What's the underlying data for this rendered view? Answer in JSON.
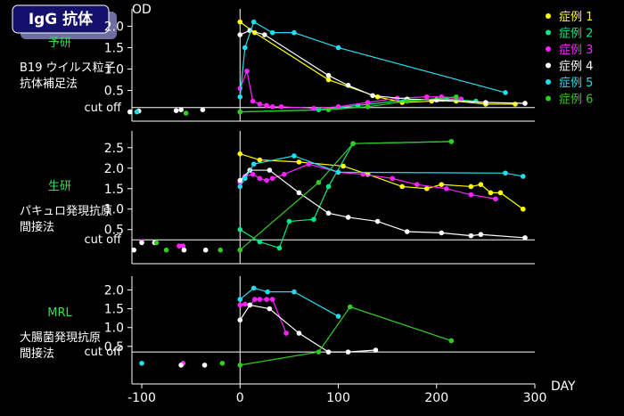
{
  "chart_data": {
    "type": "line",
    "title": "IgG 抗体",
    "y_unit": "OD",
    "x_unit": "DAY",
    "x_ticks": [
      -100,
      0,
      100,
      200,
      300
    ],
    "x_range": [
      -110,
      300
    ],
    "legend": {
      "placement": "top-right",
      "entries": [
        {
          "name": "症例 1",
          "color": "#ffff00"
        },
        {
          "name": "症例 2",
          "color": "#00e887"
        },
        {
          "name": "症例 3",
          "color": "#ff22ff"
        },
        {
          "name": "症例 4",
          "color": "#ffffff"
        },
        {
          "name": "症例 5",
          "color": "#22ddee"
        },
        {
          "name": "症例 6",
          "color": "#33cc22"
        }
      ]
    },
    "panels": [
      {
        "lab": "予研",
        "method": [
          "B19 ウイルス粒子",
          "抗体補足法"
        ],
        "lab_color": "#33dd55",
        "yticks": [
          0.5,
          1.0,
          1.5,
          2.0
        ],
        "ylim": [
          -0.05,
          2.3
        ],
        "cutoff": 0.1,
        "cutoff_label": "cut off",
        "series": [
          {
            "color": "#ffff00",
            "points": [
              [
                0,
                2.1
              ],
              [
                15,
                1.85
              ],
              [
                90,
                0.75
              ],
              [
                140,
                0.35
              ],
              [
                165,
                0.22
              ],
              [
                195,
                0.25
              ],
              [
                220,
                0.25
              ],
              [
                250,
                0.18
              ],
              [
                280,
                0.18
              ]
            ]
          },
          {
            "color": "#00e887",
            "points": [
              [
                0,
                0.0
              ],
              [
                80,
                0.05
              ],
              [
                120,
                0.15
              ],
              [
                170,
                0.28
              ],
              [
                210,
                0.3
              ],
              [
                240,
                0.25
              ]
            ]
          },
          {
            "color": "#ff22ff",
            "points": [
              [
                0,
                0.55
              ],
              [
                7,
                0.95
              ],
              [
                13,
                0.25
              ],
              [
                20,
                0.18
              ],
              [
                27,
                0.15
              ],
              [
                33,
                0.12
              ],
              [
                42,
                0.12
              ],
              [
                75,
                0.08
              ],
              [
                100,
                0.12
              ],
              [
                130,
                0.22
              ],
              [
                160,
                0.32
              ],
              [
                190,
                0.35
              ],
              [
                205,
                0.35
              ],
              [
                225,
                0.3
              ]
            ]
          },
          {
            "color": "#ffffff",
            "points": [
              [
                -112,
                0.0
              ],
              [
                -103,
                0.02
              ],
              [
                -65,
                0.03
              ],
              [
                -60,
                0.05
              ],
              [
                -38,
                0.05
              ],
              [
                0,
                1.8
              ],
              [
                10,
                1.9
              ],
              [
                25,
                1.8
              ],
              [
                90,
                0.85
              ],
              [
                110,
                0.62
              ],
              [
                135,
                0.38
              ],
              [
                170,
                0.3
              ],
              [
                200,
                0.28
              ],
              [
                250,
                0.22
              ],
              [
                290,
                0.2
              ]
            ]
          },
          {
            "color": "#22ddee",
            "points": [
              [
                -105,
                0.0
              ],
              [
                0,
                0.35
              ],
              [
                5,
                1.5
              ],
              [
                14,
                2.1
              ],
              [
                33,
                1.85
              ],
              [
                55,
                1.85
              ],
              [
                100,
                1.5
              ],
              [
                270,
                0.45
              ]
            ]
          },
          {
            "color": "#33cc22",
            "points": [
              [
                -55,
                -0.03
              ],
              [
                0,
                0.0
              ],
              [
                90,
                0.05
              ],
              [
                130,
                0.12
              ],
              [
                170,
                0.25
              ],
              [
                220,
                0.35
              ]
            ]
          }
        ]
      },
      {
        "lab": "生研",
        "method": [
          "パキュロ発現抗原",
          "間接法"
        ],
        "lab_color": "#33dd55",
        "yticks": [
          0.5,
          1.0,
          1.5,
          2.0,
          2.5
        ],
        "ylim": [
          -0.05,
          2.8
        ],
        "cutoff": 0.25,
        "cutoff_label": "cut off",
        "series": [
          {
            "color": "#ffff00",
            "points": [
              [
                0,
                2.35
              ],
              [
                20,
                2.2
              ],
              [
                60,
                2.15
              ],
              [
                105,
                2.05
              ],
              [
                130,
                1.85
              ],
              [
                165,
                1.55
              ],
              [
                190,
                1.5
              ],
              [
                205,
                1.6
              ],
              [
                235,
                1.55
              ],
              [
                245,
                1.6
              ],
              [
                255,
                1.4
              ],
              [
                265,
                1.4
              ],
              [
                288,
                1.0
              ]
            ]
          },
          {
            "color": "#00e887",
            "points": [
              [
                0,
                0.5
              ],
              [
                20,
                0.2
              ],
              [
                40,
                0.05
              ],
              [
                50,
                0.7
              ],
              [
                75,
                0.75
              ],
              [
                90,
                1.55
              ],
              [
                115,
                2.6
              ],
              [
                215,
                2.65
              ]
            ]
          },
          {
            "color": "#ff22ff",
            "points": [
              [
                -100,
                0.2
              ],
              [
                -62,
                0.1
              ],
              [
                -58,
                0.1
              ],
              [
                0,
                1.65
              ],
              [
                5,
                1.8
              ],
              [
                13,
                1.85
              ],
              [
                20,
                1.75
              ],
              [
                27,
                1.7
              ],
              [
                33,
                1.75
              ],
              [
                45,
                1.85
              ],
              [
                70,
                2.1
              ],
              [
                100,
                1.9
              ],
              [
                125,
                1.85
              ],
              [
                155,
                1.75
              ],
              [
                180,
                1.6
              ],
              [
                210,
                1.5
              ],
              [
                235,
                1.35
              ],
              [
                260,
                1.25
              ]
            ]
          },
          {
            "color": "#ffffff",
            "points": [
              [
                -108,
                0.0
              ],
              [
                -100,
                0.18
              ],
              [
                -87,
                0.18
              ],
              [
                -57,
                0.0
              ],
              [
                -35,
                0.0
              ],
              [
                0,
                1.7
              ],
              [
                10,
                1.95
              ],
              [
                30,
                1.95
              ],
              [
                60,
                1.4
              ],
              [
                90,
                0.9
              ],
              [
                110,
                0.8
              ],
              [
                140,
                0.7
              ],
              [
                170,
                0.45
              ],
              [
                205,
                0.42
              ],
              [
                235,
                0.35
              ],
              [
                245,
                0.38
              ],
              [
                290,
                0.3
              ]
            ]
          },
          {
            "color": "#22ddee",
            "points": [
              [
                0,
                1.55
              ],
              [
                5,
                1.75
              ],
              [
                14,
                2.1
              ],
              [
                55,
                2.3
              ],
              [
                100,
                1.9
              ],
              [
                270,
                1.88
              ],
              [
                288,
                1.8
              ]
            ]
          },
          {
            "color": "#33cc22",
            "points": [
              [
                -85,
                0.18
              ],
              [
                -75,
                0.0
              ],
              [
                -20,
                0.0
              ],
              [
                0,
                0.0
              ],
              [
                80,
                1.65
              ],
              [
                115,
                2.6
              ],
              [
                215,
                2.65
              ]
            ]
          }
        ]
      },
      {
        "lab": "MRL",
        "method": [
          "大腸菌発現抗原",
          "間接法"
        ],
        "lab_color": "#33dd55",
        "yticks": [
          0.5,
          1.0,
          1.5,
          2.0
        ],
        "ylim": [
          -0.05,
          2.25
        ],
        "cutoff": 0.35,
        "cutoff_label": "cut off",
        "series": [
          {
            "color": "#ff22ff",
            "points": [
              [
                -58,
                0.05
              ],
              [
                0,
                1.6
              ],
              [
                5,
                1.62
              ],
              [
                10,
                1.6
              ],
              [
                15,
                1.75
              ],
              [
                20,
                1.75
              ],
              [
                27,
                1.75
              ],
              [
                33,
                1.75
              ],
              [
                47,
                0.85
              ]
            ]
          },
          {
            "color": "#ffffff",
            "points": [
              [
                -60,
                0.0
              ],
              [
                -36,
                0.0
              ],
              [
                0,
                1.2
              ],
              [
                10,
                1.6
              ],
              [
                30,
                1.5
              ],
              [
                60,
                0.85
              ],
              [
                90,
                0.35
              ],
              [
                110,
                0.35
              ],
              [
                138,
                0.4
              ]
            ]
          },
          {
            "color": "#22ddee",
            "points": [
              [
                -100,
                0.05
              ],
              [
                0,
                1.75
              ],
              [
                14,
                2.05
              ],
              [
                28,
                1.95
              ],
              [
                55,
                1.95
              ],
              [
                100,
                1.3
              ]
            ]
          },
          {
            "color": "#33cc22",
            "points": [
              [
                -18,
                0.05
              ],
              [
                0,
                0.0
              ],
              [
                80,
                0.35
              ],
              [
                112,
                1.55
              ],
              [
                215,
                0.65
              ]
            ]
          }
        ]
      }
    ]
  }
}
